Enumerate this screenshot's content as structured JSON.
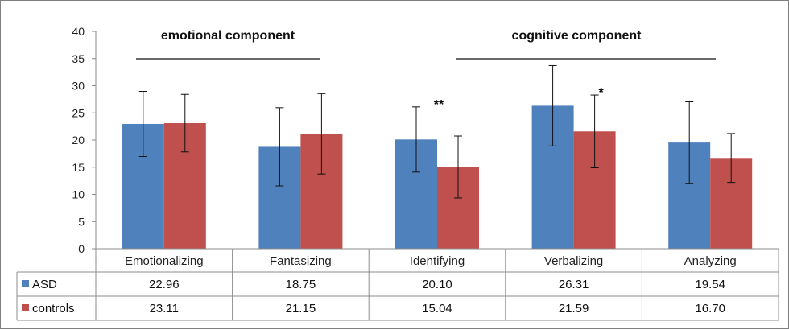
{
  "chart_data": {
    "type": "bar",
    "categories": [
      "Emotionalizing",
      "Fantasizing",
      "Identifying",
      "Verbalizing",
      "Analyzing"
    ],
    "series": [
      {
        "name": "ASD",
        "color": "#4f81bd",
        "values": [
          22.96,
          18.75,
          20.1,
          26.31,
          19.54
        ],
        "error": [
          6.0,
          7.2,
          6.0,
          7.4,
          7.5
        ]
      },
      {
        "name": "controls",
        "color": "#c0504d",
        "values": [
          23.11,
          21.15,
          15.04,
          21.59,
          16.7
        ],
        "error": [
          5.3,
          7.4,
          5.7,
          6.7,
          4.5
        ]
      }
    ],
    "table_values": [
      [
        "22.96",
        "18.75",
        "20.10",
        "26.31",
        "19.54"
      ],
      [
        "23.11",
        "21.15",
        "15.04",
        "21.59",
        "16.70"
      ]
    ],
    "ylim": [
      0,
      40
    ],
    "yticks": [
      "0",
      "5",
      "10",
      "15",
      "20",
      "25",
      "30",
      "35",
      "40"
    ],
    "group_labels": [
      {
        "text": "emotional component",
        "from_category": 0,
        "to_category": 1
      },
      {
        "text": "cognitive component",
        "from_category": 2,
        "to_category": 4
      }
    ],
    "annotations": [
      {
        "text": "**",
        "category": 2,
        "series": 0
      },
      {
        "text": "*",
        "category": 3,
        "series": 1
      }
    ],
    "legend": "data-table",
    "grid": false
  }
}
